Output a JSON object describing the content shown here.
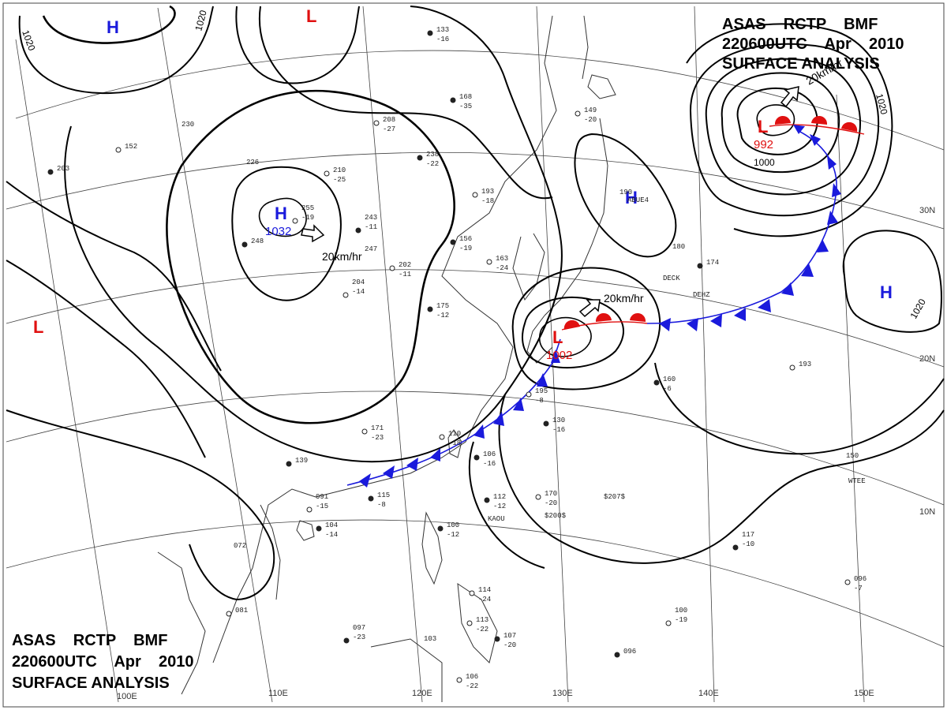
{
  "titles": {
    "top": {
      "line1": "ASAS    RCTP    BMF",
      "line2": "220600UTC    Apr    2010",
      "line3": "SURFACE ANALYSIS"
    },
    "bottom": {
      "line1": "ASAS    RCTP    BMF",
      "line2": "220600UTC    Apr    2010",
      "line3": "SURFACE ANALYSIS"
    }
  },
  "latitude_labels": [
    "30N",
    "20N",
    "10N"
  ],
  "longitude_labels": [
    "100E",
    "110E",
    "120E",
    "130E",
    "140E",
    "150E"
  ],
  "isobar_labels": [
    "1020",
    "1020",
    "1020",
    "1000",
    "1020"
  ],
  "pressure_centers": [
    {
      "type": "H",
      "color": "#1a1adc"
    },
    {
      "type": "L",
      "color": "#e01010"
    },
    {
      "type": "H",
      "color": "#1a1adc",
      "pressure": "1032"
    },
    {
      "type": "L",
      "color": "#e01010"
    },
    {
      "type": "L",
      "color": "#e01010",
      "pressure": "1002"
    },
    {
      "type": "H",
      "color": "#1a1adc"
    },
    {
      "type": "L",
      "color": "#e01010",
      "pressure": "992"
    },
    {
      "type": "H",
      "color": "#1a1adc"
    }
  ],
  "movements": [
    "20km/hr",
    "20km/hr",
    "20km/hr"
  ],
  "station_values": [
    "133",
    "-16",
    "149",
    "-20",
    "168",
    "-35",
    "208",
    "-27",
    "238",
    "-22",
    "193",
    "-18",
    "156",
    "-19",
    "202",
    "-11",
    "175",
    "-12",
    "163",
    "-24",
    "106",
    "-16",
    "110",
    "-18",
    "130",
    "-16",
    "195",
    "-8",
    "112",
    "-12",
    "170",
    "-20",
    "160",
    "-6",
    "193",
    "180",
    "174",
    "190",
    "152",
    "230",
    "203",
    "255",
    "-19",
    "243",
    "-11",
    "204",
    "-14",
    "247",
    "248",
    "226",
    "210",
    "-25",
    "139",
    "091",
    "-15",
    "072",
    "104",
    "-14",
    "081",
    "097",
    "-23",
    "103",
    "113",
    "-22",
    "107",
    "-20",
    "106",
    "-22",
    "096",
    "100",
    "-19",
    "117",
    "-10",
    "150",
    "096",
    "-7",
    "100",
    "-12",
    "114",
    "-24",
    "115",
    "-8",
    "171",
    "-23"
  ],
  "station_ids": [
    "ABUE4",
    "DEHZ",
    "DECK",
    "KAOU",
    "WTEE",
    "$207$",
    "$200$"
  ],
  "colors": {
    "isobar": "#000000",
    "cold_front": "#1a1adc",
    "warm_front": "#e01010",
    "coast": "#333333",
    "grid": "#444444",
    "high": "#1a1adc",
    "low": "#e01010"
  }
}
